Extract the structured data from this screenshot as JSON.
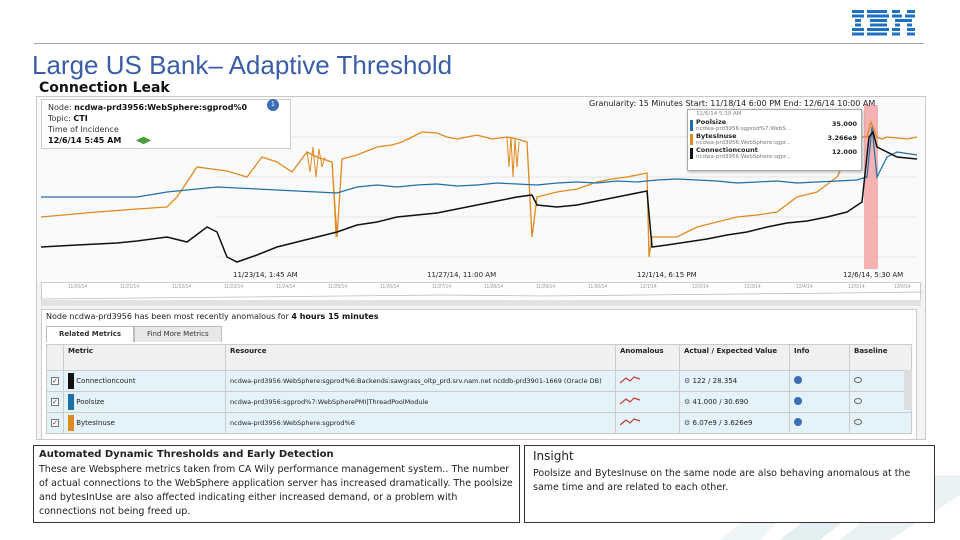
{
  "slide": {
    "title": "Large US Bank– Adaptive Threshold",
    "subtitle": "Connection Leak",
    "logo_text": "IBM"
  },
  "info_box": {
    "node_label": "Node:",
    "node_value": "ncdwa-prd3956:WebSphere:sgprod%0",
    "topic_label": "Topic:",
    "topic_value": "CTI",
    "time_label": "Time of Incidence",
    "time_value": "12/6/14 5:45 AM",
    "badge": "1"
  },
  "header": {
    "granularity": "Granularity: 15 Minutes  Start: 11/18/14 6:00 PM  End: 12/6/14 10:00 AM"
  },
  "tooltip": {
    "date": "12/6/14 5:30 AM",
    "rows": [
      {
        "name": "Poolsize",
        "sub": "ncdwa-prd3956:sgprod%7:WebS...",
        "value": "35.000",
        "color": "#1f6fa8"
      },
      {
        "name": "BytesInuse",
        "sub": "ncdwa-prd3956:WebSphere:sgpr...",
        "value": "3.266e9",
        "color": "#e08a1e"
      },
      {
        "name": "Connectioncount",
        "sub": "ncdwa-prd3956:WebSphere:sgpr...",
        "value": "12.000",
        "color": "#111111"
      }
    ]
  },
  "x_labels": [
    "11/23/14, 1:45 AM",
    "11/27/14, 11:00 AM",
    "12/1/14, 6:15 PM",
    "12/6/14, 5:30 AM"
  ],
  "timeline_labels": [
    "11/20/14",
    "11/21/14",
    "11/22/14",
    "11/23/14",
    "11/24/14",
    "11/25/14",
    "11/26/14",
    "11/27/14",
    "11/28/14",
    "11/29/14",
    "11/30/14",
    "12/1/14",
    "12/2/14",
    "12/3/14",
    "12/4/14",
    "12/5/14",
    "12/6/14"
  ],
  "node_message": {
    "prefix": "Node ncdwa-prd3956 has been most recently anomalous for",
    "duration": "4 hours 15 minutes"
  },
  "tabs": [
    "Related Metrics",
    "Find More Metrics"
  ],
  "table": {
    "headers": [
      "Metric",
      "Resource",
      "Anomalous",
      "Actual / Expected Value",
      "Info",
      "Baseline"
    ],
    "rows": [
      {
        "metric": "Connectioncount",
        "resource": "ncdwa-prd3956:WebSphere:sgprod%6:Backends:sawgrass_oltp_prd.srv.nam.net ncddb-prd3901-1669 (Oracle DB)",
        "value": "122 / 28.354",
        "color": "#111111"
      },
      {
        "metric": "Poolsize",
        "resource": "ncdwa-prd3956:sgprod%7:WebSpherePMI|ThreadPoolModule",
        "value": "41.000 / 30.690",
        "color": "#1f6fa8"
      },
      {
        "metric": "BytesInuse",
        "resource": "ncdwa-prd3956:WebSphere:sgprod%6",
        "value": "6.07e9 / 3.626e9",
        "color": "#e08a1e"
      }
    ]
  },
  "box_left": {
    "heading": "Automated Dynamic Thresholds and Early Detection",
    "body": "These are Websphere metrics taken from CA Wily performance management system.. The number of actual connections to the WebSphere application server has increased dramatically. The poolsize and bytesInUse are also affected indicating either increased demand, or a problem with connections not being freed up."
  },
  "box_right": {
    "heading": "Insight",
    "body": "Poolsize and BytesInuse on the same node are also behaving anomalous at the same time and are related to each other."
  },
  "colors": {
    "title": "#3b5ea8",
    "orange": "#e08a1e",
    "blue": "#1f6fa8",
    "black": "#111111",
    "anomaly": "#f19a9a"
  }
}
